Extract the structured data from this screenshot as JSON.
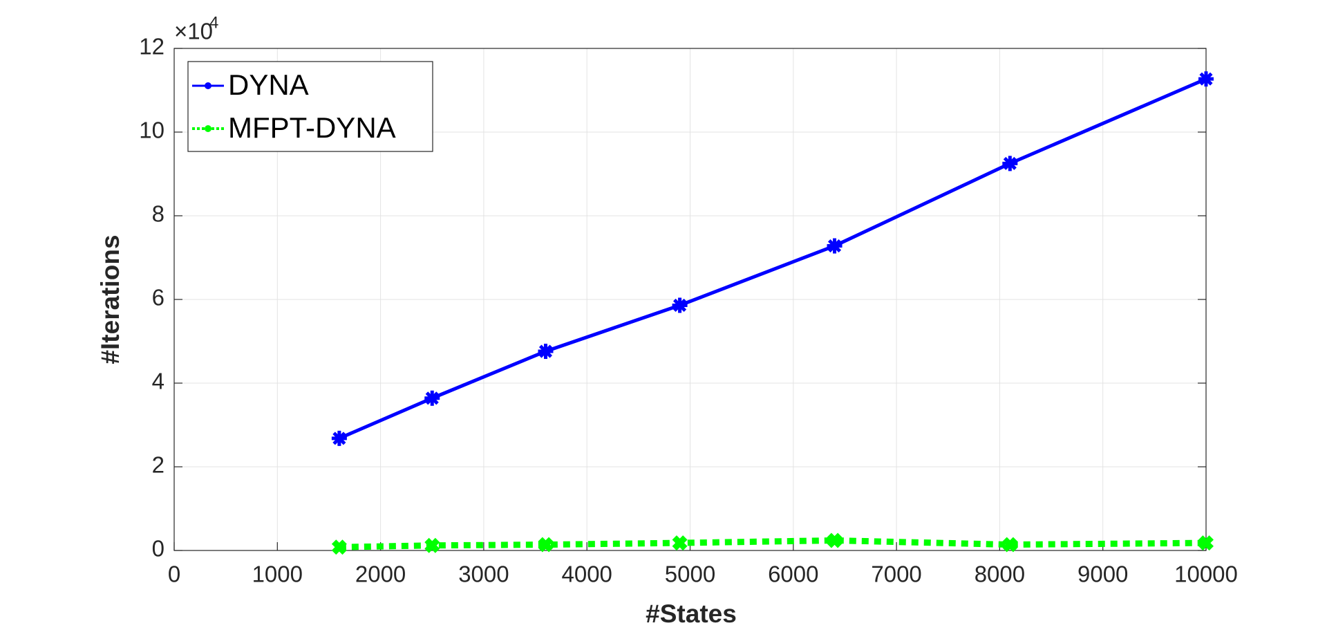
{
  "chart_data": {
    "type": "line",
    "x_label": "#States",
    "y_label": "#Iterations",
    "y_exponent": {
      "base": "×10",
      "power": "4"
    },
    "x": [
      1600,
      2500,
      3600,
      4900,
      6400,
      8100,
      10000
    ],
    "series": [
      {
        "name": "DYNA",
        "color": "#0000ff",
        "marker": "asterisk",
        "dashed": false,
        "values": [
          2.68,
          3.64,
          4.76,
          5.86,
          7.28,
          9.25,
          11.27
        ]
      },
      {
        "name": "MFPT-DYNA",
        "color": "#00ff00",
        "marker": "x",
        "dashed": true,
        "values": [
          0.08,
          0.12,
          0.14,
          0.18,
          0.24,
          0.14,
          0.18
        ]
      }
    ],
    "xlim": [
      0,
      10000
    ],
    "xticks": [
      0,
      1000,
      2000,
      3000,
      4000,
      5000,
      6000,
      7000,
      8000,
      9000,
      10000
    ],
    "ylim": [
      0,
      12
    ],
    "yticks": [
      0,
      2,
      4,
      6,
      8,
      10,
      12
    ],
    "grid": true,
    "legend": "top-left"
  }
}
